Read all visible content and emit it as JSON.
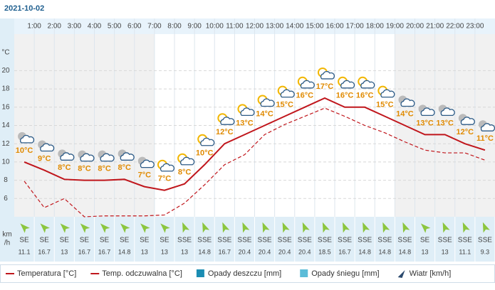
{
  "title": "2021-10-02",
  "chart_data": {
    "type": "line",
    "xlim": [
      0,
      24
    ],
    "xticks": [
      {
        "value": 1,
        "label": "1:00"
      },
      {
        "value": 2,
        "label": "2:00"
      },
      {
        "value": 3,
        "label": "3:00"
      },
      {
        "value": 4,
        "label": "4:00"
      },
      {
        "value": 5,
        "label": "5:00"
      },
      {
        "value": 6,
        "label": "6:00"
      },
      {
        "value": 7,
        "label": "7:00"
      },
      {
        "value": 8,
        "label": "8:00"
      },
      {
        "value": 9,
        "label": "9:00"
      },
      {
        "value": 10,
        "label": "10:00"
      },
      {
        "value": 11,
        "label": "11:00"
      },
      {
        "value": 12,
        "label": "12:00"
      },
      {
        "value": 13,
        "label": "13:00"
      },
      {
        "value": 14,
        "label": "14:00"
      },
      {
        "value": 15,
        "label": "15:00"
      },
      {
        "value": 16,
        "label": "16:00"
      },
      {
        "value": 17,
        "label": "17:00"
      },
      {
        "value": 18,
        "label": "18:00"
      },
      {
        "value": 19,
        "label": "19:00"
      },
      {
        "value": 20,
        "label": "20:00"
      },
      {
        "value": 21,
        "label": "21:00"
      },
      {
        "value": 22,
        "label": "22:00"
      },
      {
        "value": 23,
        "label": "23:00"
      }
    ],
    "x": [
      0.5,
      1.5,
      2.5,
      3.5,
      4.5,
      5.5,
      6.5,
      7.5,
      8.5,
      9.5,
      10.5,
      11.5,
      12.5,
      13.5,
      14.5,
      15.5,
      16.5,
      17.5,
      18.5,
      19.5,
      20.5,
      21.5,
      22.5,
      23.5
    ],
    "ylim": [
      4,
      24
    ],
    "yticks": [
      6,
      8,
      10,
      12,
      14,
      16,
      18,
      20
    ],
    "y_label": "°C",
    "grid": true,
    "night": [
      [
        0,
        7
      ],
      [
        19,
        24
      ]
    ],
    "series": [
      {
        "name": "Temperatura [°C]",
        "color": "#c0161c",
        "values": [
          10,
          9.1,
          8.1,
          8,
          8,
          8.1,
          7.3,
          6.9,
          7.6,
          9.7,
          12,
          13,
          14,
          15,
          16,
          17,
          16,
          16,
          15,
          14,
          13,
          13,
          12,
          11.3
        ],
        "value_labels": [
          "10°C",
          "9°C",
          "8°C",
          "8°C",
          "8°C",
          "8°C",
          "7°C",
          "7°C",
          "8°C",
          "10°C",
          "12°C",
          "13°C",
          "14°C",
          "15°C",
          "16°C",
          "17°C",
          "16°C",
          "16°C",
          "15°C",
          "14°C",
          "13°C",
          "13°C",
          "12°C",
          "11°C"
        ]
      },
      {
        "name": "Temp. odczuwalna [°C]",
        "color": "#c0161c",
        "dashed": true,
        "values": [
          7.9,
          5,
          6,
          4,
          4.1,
          4.1,
          4.1,
          4.2,
          5.5,
          7.5,
          9.7,
          10.8,
          13,
          14.1,
          15,
          15.9,
          15,
          14,
          13.2,
          12.2,
          11.3,
          11,
          11,
          10.2
        ]
      }
    ],
    "legend_extra": [
      {
        "name": "Opady deszczu [mm]",
        "color": "#1b8db3"
      },
      {
        "name": "Opady śniegu [mm]",
        "color": "#5bbcd8"
      },
      {
        "name": "Wiatr [km/h]",
        "color": "#2c4a6e"
      }
    ]
  },
  "wind": {
    "unit": [
      "km",
      "/h"
    ],
    "directions": [
      "SE",
      "SE",
      "SE",
      "SE",
      "SE",
      "SE",
      "SE",
      "SE",
      "SSE",
      "SSE",
      "SSE",
      "SSE",
      "SSE",
      "SSE",
      "SSE",
      "SSE",
      "SSE",
      "SSE",
      "SSE",
      "SSE",
      "SE",
      "SSE",
      "SSE",
      "SSE"
    ],
    "speeds": [
      11.1,
      16.7,
      13,
      16.7,
      16.7,
      14.8,
      13,
      13,
      13,
      14.8,
      16.7,
      20.4,
      20.4,
      20.4,
      20.4,
      18.5,
      16.7,
      14.8,
      14.8,
      14.8,
      13,
      13,
      11.1,
      9.3
    ]
  }
}
